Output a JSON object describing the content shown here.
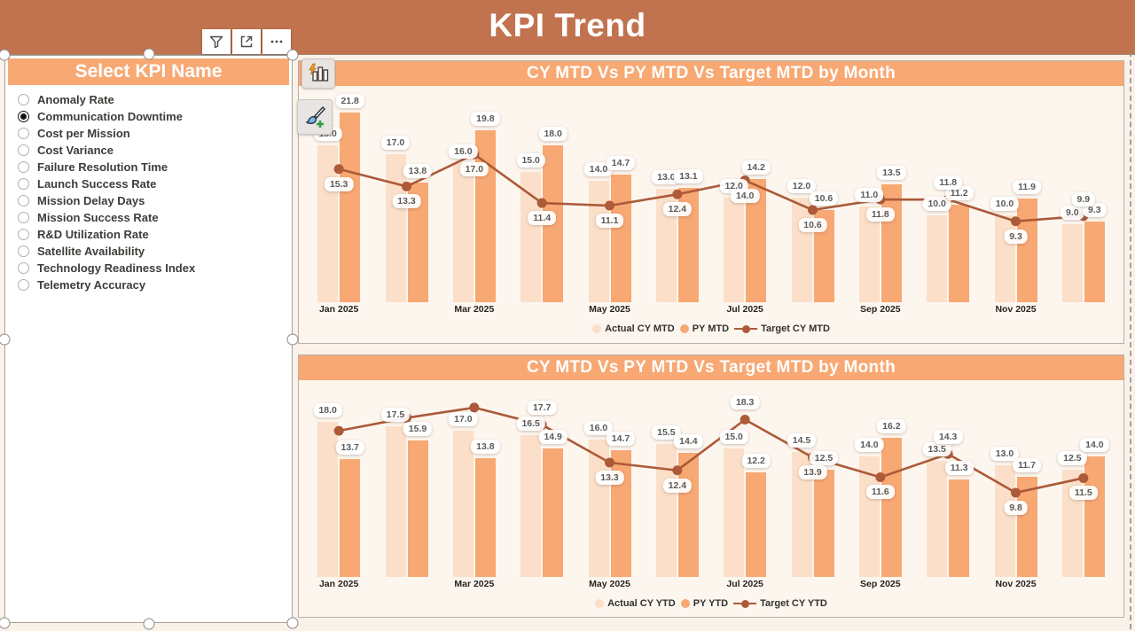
{
  "header": {
    "title": "KPI Trend"
  },
  "toolbar": {
    "filter_label": "filter",
    "focus_label": "focus mode",
    "more_label": "..."
  },
  "slicer": {
    "title": "Select KPI Name",
    "items": [
      {
        "label": "Anomaly Rate",
        "selected": false
      },
      {
        "label": "Communication Downtime",
        "selected": true
      },
      {
        "label": "Cost per Mission",
        "selected": false
      },
      {
        "label": "Cost Variance",
        "selected": false
      },
      {
        "label": "Failure Resolution Time",
        "selected": false
      },
      {
        "label": "Launch Success Rate",
        "selected": false
      },
      {
        "label": "Mission Delay Days",
        "selected": false
      },
      {
        "label": "Mission Success Rate",
        "selected": false
      },
      {
        "label": "R&D Utilization Rate",
        "selected": false
      },
      {
        "label": "Satellite Availability",
        "selected": false
      },
      {
        "label": "Technology Readiness Index",
        "selected": false
      },
      {
        "label": "Telemetry Accuracy",
        "selected": false
      }
    ]
  },
  "colors": {
    "header_band": "#c0734e",
    "accent_orange": "#f8a873",
    "bar_light": "#fbdfc8",
    "bar_dark": "#f8a873",
    "target_line": "#ac5a38"
  },
  "chart_data": [
    {
      "type": "bar",
      "subtype": "clustered bars with target line overlay",
      "title": "CY MTD Vs PY MTD Vs Target MTD by Month",
      "categories": [
        "Jan 2025",
        "Feb 2025",
        "Mar 2025",
        "Apr 2025",
        "May 2025",
        "Jun 2025",
        "Jul 2025",
        "Aug 2025",
        "Sep 2025",
        "Oct 2025",
        "Nov 2025",
        "Dec 2025"
      ],
      "x_ticks_shown": [
        "Jan 2025",
        "Mar 2025",
        "May 2025",
        "Jul 2025",
        "Sep 2025",
        "Nov 2025"
      ],
      "series": [
        {
          "name": "Actual CY MTD",
          "kind": "bar",
          "color": "#fbdfc8",
          "values": [
            18.0,
            17.0,
            16.0,
            15.0,
            14.0,
            13.0,
            12.0,
            12.0,
            11.0,
            10.0,
            10.0,
            9.0
          ]
        },
        {
          "name": "PY MTD",
          "kind": "bar",
          "color": "#f8a873",
          "values": [
            21.8,
            13.8,
            19.8,
            18.0,
            14.7,
            13.1,
            14.2,
            10.6,
            13.5,
            11.2,
            11.9,
            9.3
          ]
        },
        {
          "name": "Target CY MTD",
          "kind": "line",
          "color": "#ac5a38",
          "values": [
            15.3,
            13.3,
            17.0,
            11.4,
            11.1,
            12.4,
            14.0,
            10.6,
            11.8,
            11.8,
            9.3,
            9.9
          ],
          "hidden_label_indices": []
        }
      ],
      "ylim": [
        0,
        22
      ],
      "grid": false,
      "legend_position": "bottom"
    },
    {
      "type": "bar",
      "subtype": "clustered bars with target line overlay",
      "title": "CY MTD Vs PY MTD Vs Target MTD by Month",
      "categories": [
        "Jan 2025",
        "Feb 2025",
        "Mar 2025",
        "Apr 2025",
        "May 2025",
        "Jun 2025",
        "Jul 2025",
        "Aug 2025",
        "Sep 2025",
        "Oct 2025",
        "Nov 2025",
        "Dec 2025"
      ],
      "x_ticks_shown": [
        "Jan 2025",
        "Mar 2025",
        "May 2025",
        "Jul 2025",
        "Sep 2025",
        "Nov 2025"
      ],
      "series": [
        {
          "name": "Actual CY YTD",
          "kind": "bar",
          "color": "#fbdfc8",
          "values": [
            18.0,
            17.5,
            17.0,
            16.5,
            16.0,
            15.5,
            15.0,
            14.5,
            14.0,
            13.5,
            13.0,
            12.5
          ]
        },
        {
          "name": "PY YTD",
          "kind": "bar",
          "color": "#f8a873",
          "values": [
            13.7,
            15.9,
            13.8,
            14.9,
            14.7,
            14.4,
            12.2,
            12.5,
            16.2,
            11.3,
            11.7,
            14.0
          ]
        },
        {
          "name": "Target CY YTD",
          "kind": "line",
          "color": "#ac5a38",
          "values": [
            17.0,
            18.5,
            19.7,
            17.7,
            13.3,
            12.4,
            18.3,
            13.9,
            11.6,
            14.3,
            9.8,
            11.5
          ],
          "hidden_label_indices": [
            0,
            1,
            2
          ]
        }
      ],
      "ylim": [
        0,
        20
      ],
      "grid": false,
      "legend_position": "bottom"
    }
  ]
}
